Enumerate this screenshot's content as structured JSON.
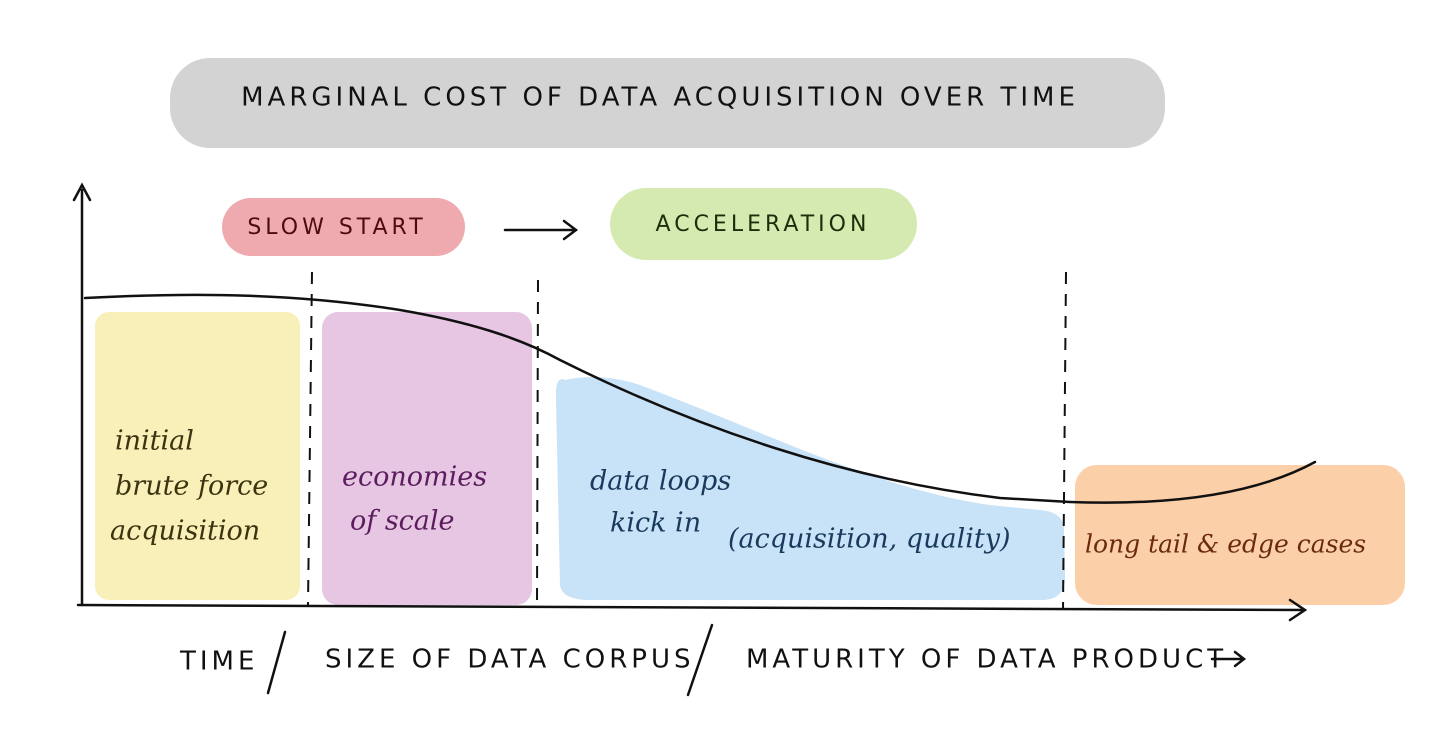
{
  "title": "MARGINAL COST OF DATA ACQUISITION OVER TIME",
  "phases": [
    {
      "label": "SLOW START"
    },
    {
      "label": "ACCELERATION"
    }
  ],
  "regions": [
    {
      "lines": [
        "initial",
        "brute force",
        "acquisition"
      ]
    },
    {
      "lines": [
        "economies",
        "of scale"
      ]
    },
    {
      "lines": [
        "data loops",
        "kick in",
        "(acquisition, quality)"
      ]
    },
    {
      "lines": [
        "long tail & edge cases"
      ]
    }
  ],
  "x_axis": {
    "parts": [
      "TIME",
      "SIZE OF DATA CORPUS",
      "MATURITY OF DATA PRODUCT"
    ]
  }
}
